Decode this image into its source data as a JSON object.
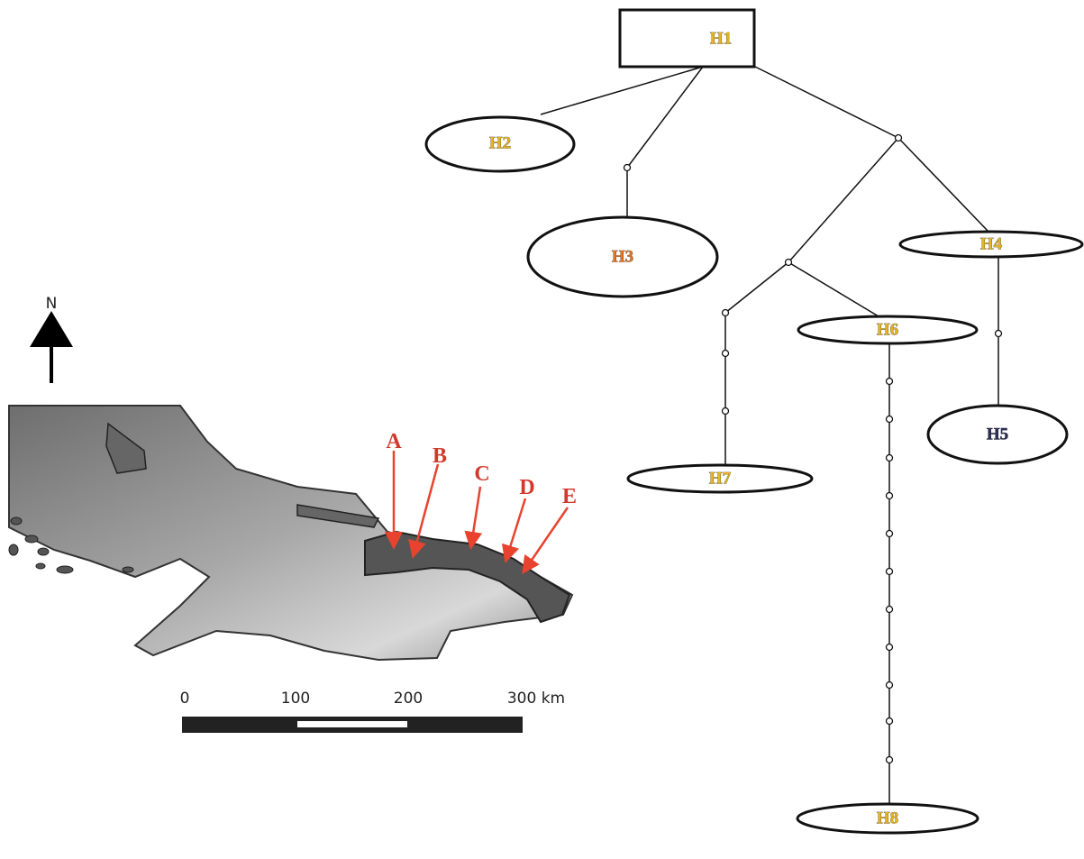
{
  "map": {
    "north_label": "N",
    "sites": [
      "A",
      "B",
      "C",
      "D",
      "E"
    ],
    "scale_bar": [
      "0",
      "100",
      "200",
      "300 km"
    ]
  },
  "network": {
    "nodes": [
      {
        "label": "H1"
      },
      {
        "label": "H2"
      },
      {
        "label": "H3"
      },
      {
        "label": "H4"
      },
      {
        "label": "H5"
      },
      {
        "label": "H6"
      },
      {
        "label": "H7"
      },
      {
        "label": "H8"
      }
    ]
  }
}
